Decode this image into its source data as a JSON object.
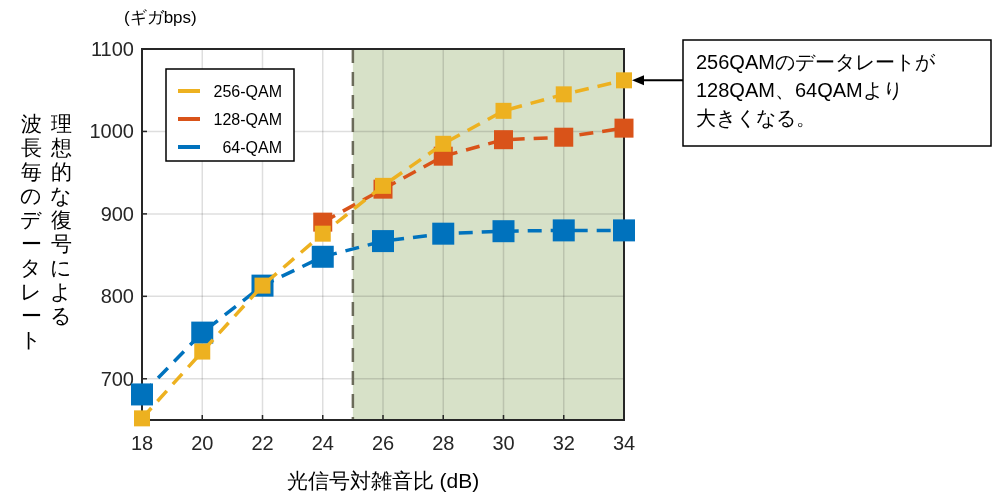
{
  "chart_data": {
    "type": "line",
    "xlabel": "光信号対雑音比 (dB)",
    "ylabel": "理想的な復号による波長毎のデータレート",
    "annotations": [
      "(ギガbps)",
      "256QAMのデータレートが128QAM、64QAMより大きくなる。"
    ],
    "x": [
      18,
      20,
      22,
      24,
      26,
      28,
      30,
      32,
      34
    ],
    "series": [
      {
        "name": "256-QAM",
        "color": "#edb120",
        "values": [
          652,
          733,
          813,
          876,
          934,
          985,
          1025,
          1045,
          1062
        ]
      },
      {
        "name": "128-QAM",
        "color": "#d95319",
        "values": [
          null,
          null,
          null,
          890,
          930,
          970,
          990,
          993,
          1004
        ]
      },
      {
        "name": "64-QAM",
        "color": "#0072bd",
        "values": [
          681,
          756,
          813,
          848,
          867,
          876,
          879,
          880,
          880
        ]
      }
    ],
    "xlim": [
      18,
      34
    ],
    "ylim": [
      650,
      1100
    ],
    "xticks": [
      18,
      20,
      22,
      24,
      26,
      28,
      30,
      32,
      34
    ],
    "yticks": [
      700,
      800,
      900,
      1000,
      1100
    ],
    "bands": [
      {
        "axis": "x",
        "from": 25,
        "to": 34,
        "color": "#a7bd84"
      }
    ],
    "ref_lines": [
      {
        "axis": "x",
        "value": 25,
        "color": "#6b6b5a",
        "line_style": "dashed"
      }
    ],
    "grid": true,
    "legend": "top left",
    "marker": "square",
    "line_style": "dashed"
  }
}
